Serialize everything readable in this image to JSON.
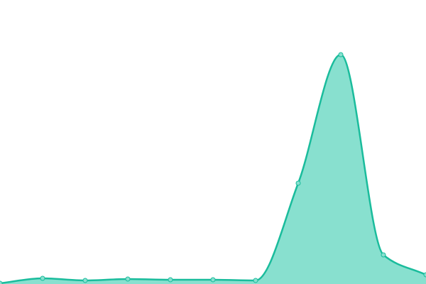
{
  "chart_data": {
    "type": "area",
    "categories": [
      null,
      null,
      null,
      null,
      null,
      null,
      null,
      null,
      null,
      null,
      null
    ],
    "series": [
      {
        "color": "#1abc9c",
        "fill": "#88e0cf",
        "values": [
          1,
          8,
          5,
          7,
          6,
          6,
          5,
          142,
          323,
          41,
          13
        ]
      }
    ],
    "ylim": [
      0,
      400
    ],
    "grid": false,
    "markers": true
  }
}
